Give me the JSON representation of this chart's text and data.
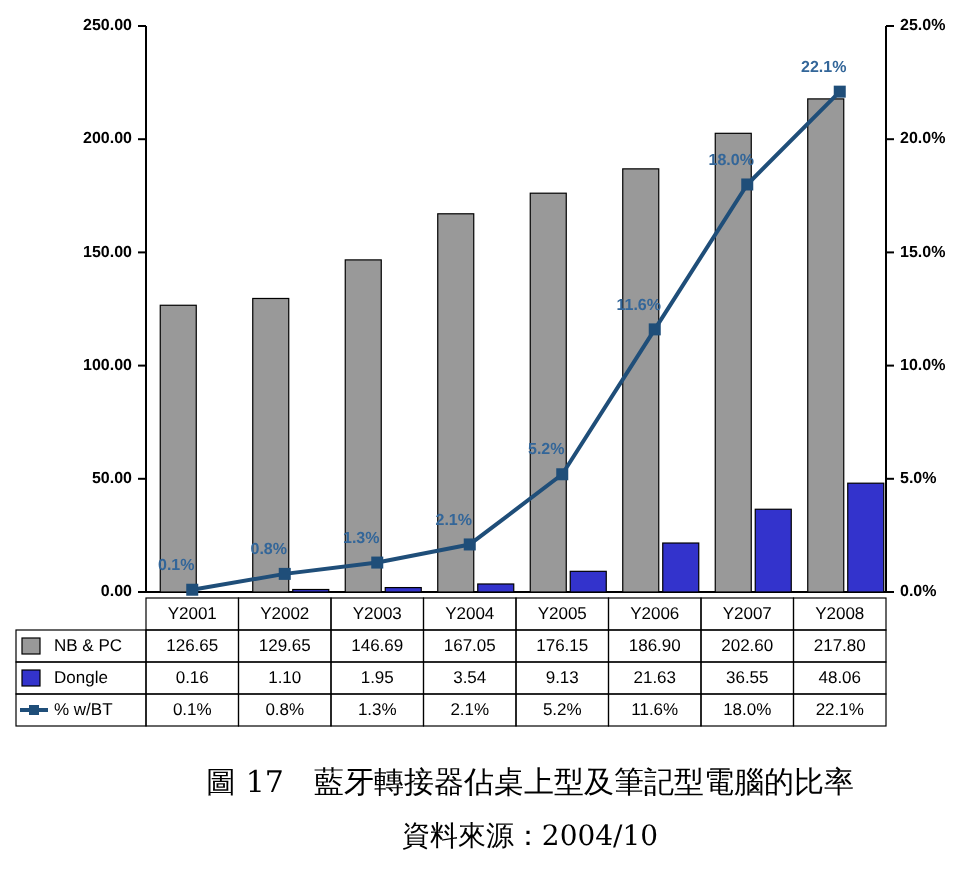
{
  "chart_data": {
    "type": "bar",
    "categories": [
      "Y2001",
      "Y2002",
      "Y2003",
      "Y2004",
      "Y2005",
      "Y2006",
      "Y2007",
      "Y2008"
    ],
    "series": [
      {
        "name": "NB & PC",
        "color": "#999999",
        "values": [
          126.65,
          129.65,
          146.69,
          167.05,
          176.15,
          186.9,
          202.6,
          217.8
        ],
        "value_labels": [
          "126.65",
          "129.65",
          "146.69",
          "167.05",
          "176.15",
          "186.90",
          "202.60",
          "217.80"
        ]
      },
      {
        "name": "Dongle",
        "color": "#3333cc",
        "values": [
          0.16,
          1.1,
          1.95,
          3.54,
          9.13,
          21.63,
          36.55,
          48.06
        ],
        "value_labels": [
          "0.16",
          "1.10",
          "1.95",
          "3.54",
          "9.13",
          "21.63",
          "36.55",
          "48.06"
        ]
      },
      {
        "name": "% w/BT",
        "type": "line",
        "axis": "y2",
        "color": "#1f4e79",
        "marker": "square",
        "values": [
          0.1,
          0.8,
          1.3,
          2.1,
          5.2,
          11.6,
          18.0,
          22.1
        ],
        "value_labels": [
          "0.1%",
          "0.8%",
          "1.3%",
          "2.1%",
          "5.2%",
          "11.6%",
          "18.0%",
          "22.1%"
        ]
      }
    ],
    "ylim": [
      0,
      250
    ],
    "yticks": [
      {
        "value": 0,
        "label": "0.00"
      },
      {
        "value": 50,
        "label": "50.00"
      },
      {
        "value": 100,
        "label": "100.00"
      },
      {
        "value": 150,
        "label": "150.00"
      },
      {
        "value": 200,
        "label": "200.00"
      },
      {
        "value": 250,
        "label": "250.00"
      }
    ],
    "y2lim": [
      0,
      25
    ],
    "y2ticks": [
      {
        "value": 0,
        "label": "0.0%"
      },
      {
        "value": 5,
        "label": "5.0%"
      },
      {
        "value": 10,
        "label": "10.0%"
      },
      {
        "value": 15,
        "label": "15.0%"
      },
      {
        "value": 20,
        "label": "20.0%"
      },
      {
        "value": 25,
        "label": "25.0%"
      }
    ],
    "legend": "bottom",
    "annotations": [
      "圖 17　藍牙轉接器佔桌上型及筆記型電腦的比率",
      "資料來源：2004/10"
    ]
  }
}
